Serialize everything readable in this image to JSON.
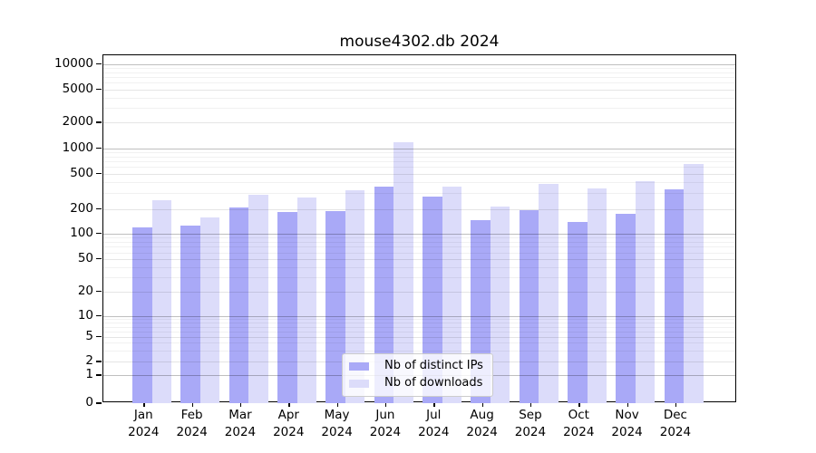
{
  "figure": {
    "background": "#ffffff"
  },
  "chart_data": {
    "type": "bar",
    "title": "mouse4302.db 2024",
    "categories": [
      "Jan",
      "Feb",
      "Mar",
      "Apr",
      "May",
      "Jun",
      "Jul",
      "Aug",
      "Sep",
      "Oct",
      "Nov",
      "Dec"
    ],
    "x_tick_second_line": "2024",
    "series": [
      {
        "name": "Nb of distinct IPs",
        "color": "#a9a9f7",
        "values": [
          118,
          127,
          210,
          182,
          190,
          360,
          273,
          147,
          194,
          138,
          174,
          330
        ]
      },
      {
        "name": "Nb of downloads",
        "color": "#dcdcfa",
        "values": [
          253,
          157,
          287,
          268,
          324,
          1180,
          356,
          214,
          381,
          343,
          415,
          650
        ]
      }
    ],
    "yscale": "symlog",
    "y_ticks": [
      0,
      1,
      2,
      5,
      10,
      20,
      50,
      100,
      200,
      500,
      1000,
      2000,
      5000,
      10000
    ],
    "ylim": [
      0,
      12800
    ],
    "grid": true,
    "legend_position": "lower center inside",
    "colors": {
      "major_power_gridline": "rgba(0,0,0,0.25)",
      "labeled_gridline": "rgba(0,0,0,0.10)",
      "minor_gridline": "rgba(0,0,0,0.055)"
    }
  }
}
